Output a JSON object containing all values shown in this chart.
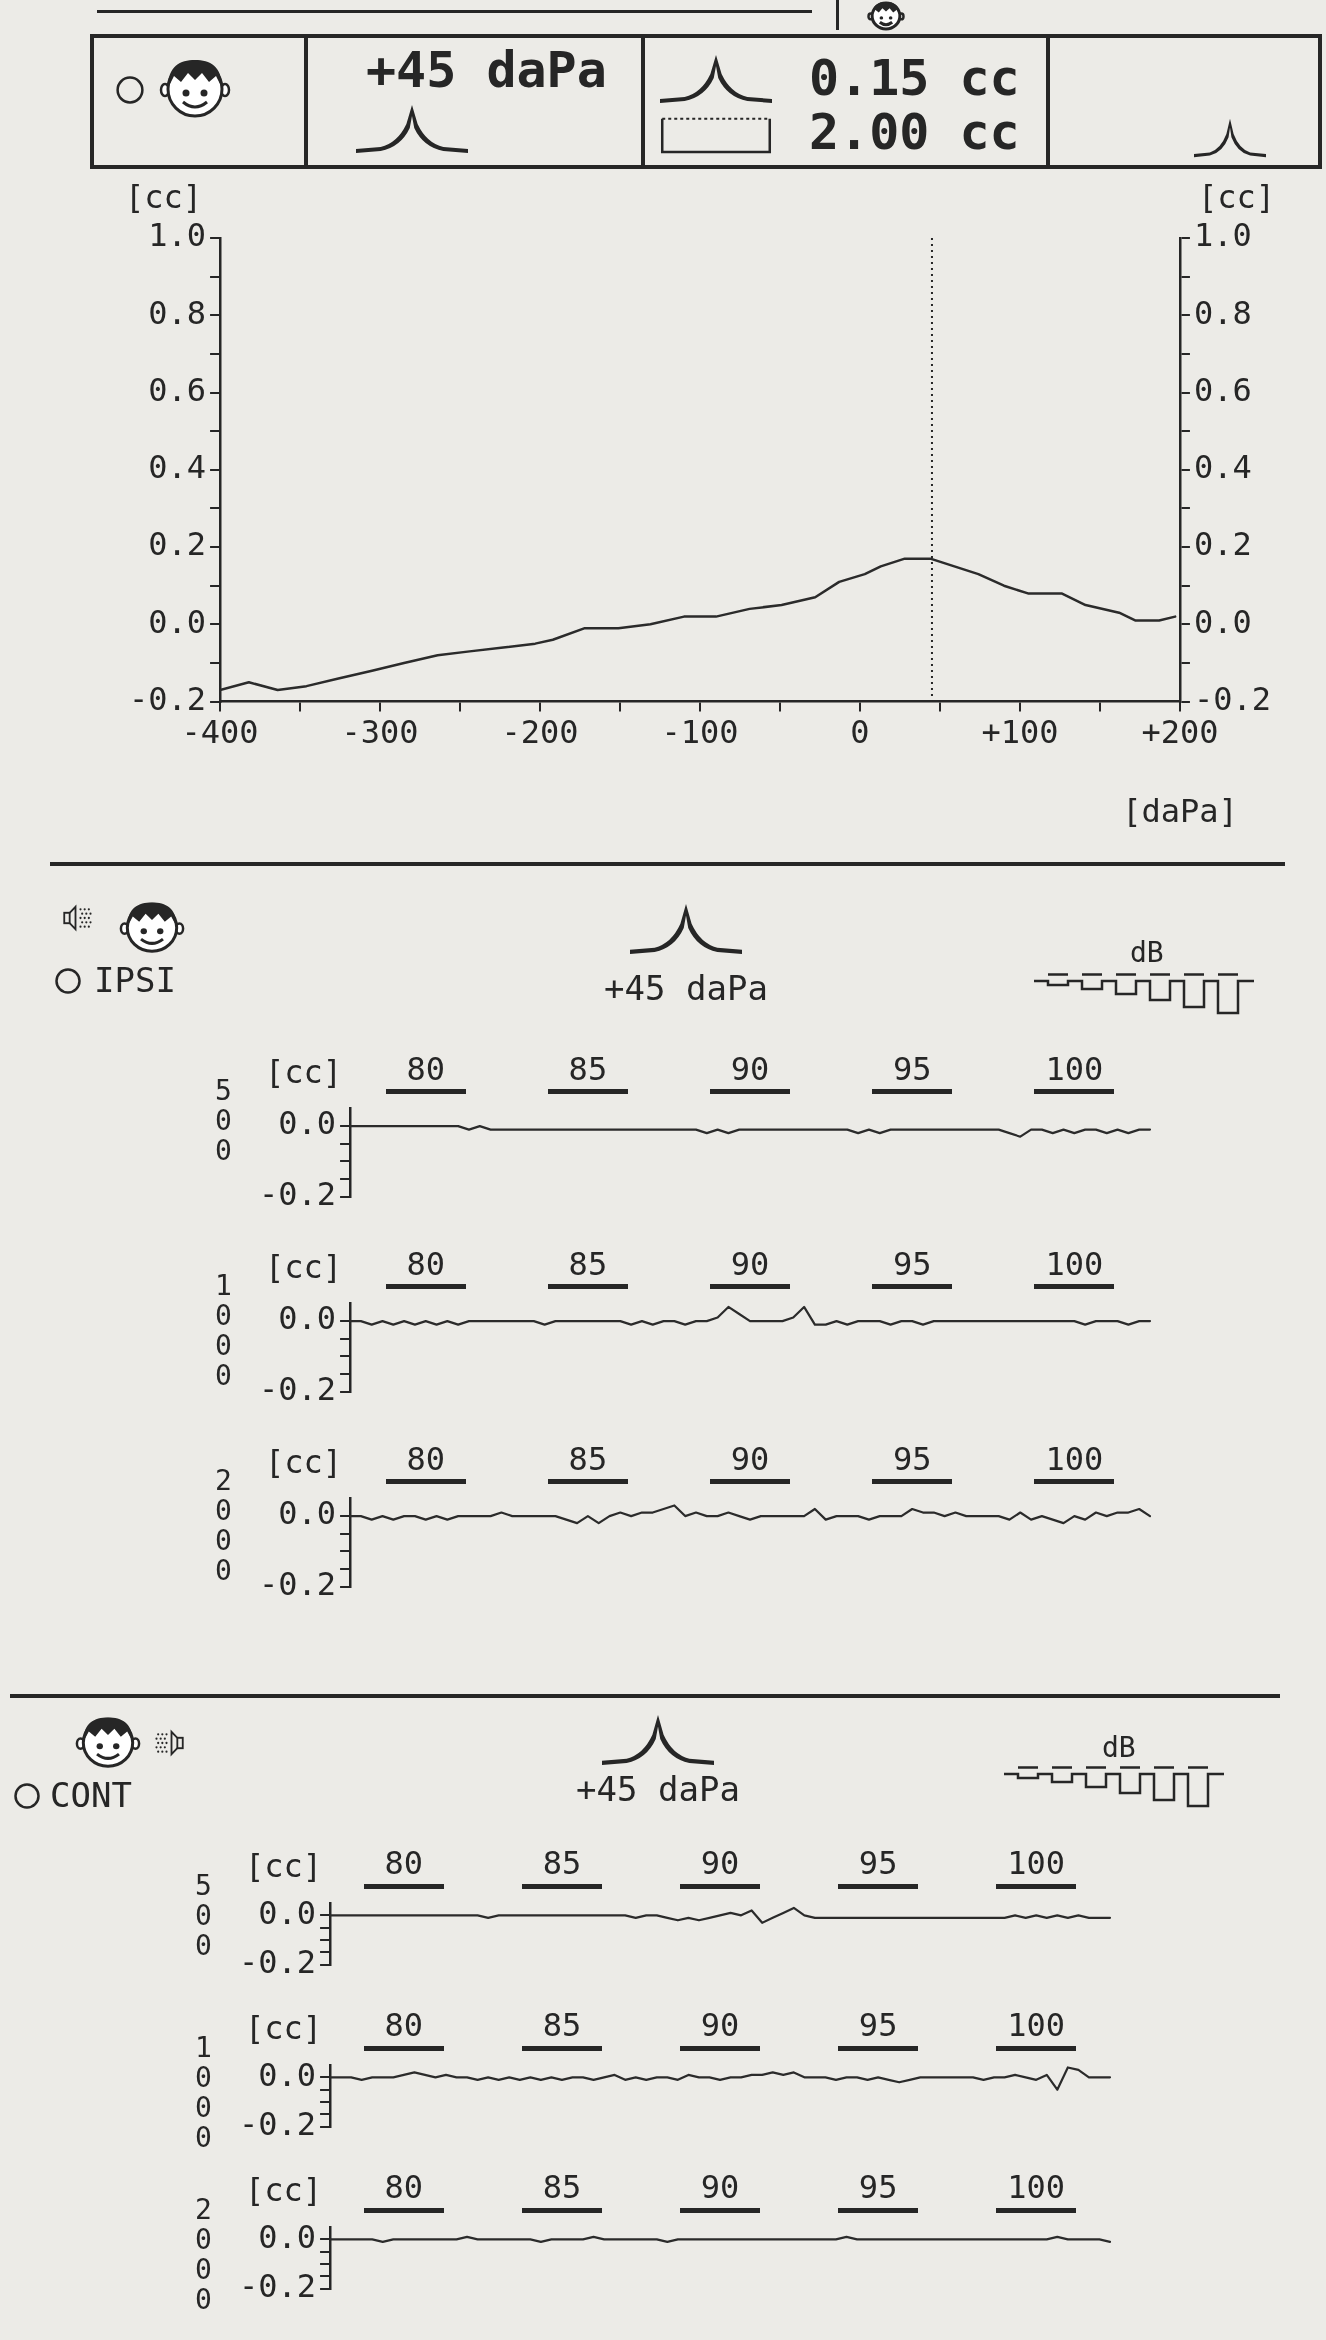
{
  "chart_data": [
    {
      "type": "other",
      "annotations": [
        "+45 daPa",
        "0.15 cc",
        "2.00 cc"
      ]
    },
    {
      "type": "line",
      "xlabel": "[daPa]",
      "ylabel": "[cc]",
      "y2label": "[cc]",
      "x": [
        -400,
        -382,
        -364,
        -346,
        -326,
        -305,
        -285,
        -264,
        -244,
        -223,
        -203,
        -192,
        -172,
        -151,
        -131,
        -110,
        -90,
        -69,
        -49,
        -28,
        -13,
        3,
        13,
        28,
        44,
        59,
        74,
        90,
        105,
        126,
        141,
        162,
        172,
        187,
        197
      ],
      "values": [
        -0.17,
        -0.15,
        -0.17,
        -0.16,
        -0.14,
        -0.12,
        -0.1,
        -0.08,
        -0.07,
        -0.06,
        -0.05,
        -0.04,
        -0.01,
        -0.01,
        0,
        0.02,
        0.02,
        0.04,
        0.05,
        0.07,
        0.11,
        0.13,
        0.15,
        0.17,
        0.17,
        0.15,
        0.13,
        0.1,
        0.08,
        0.08,
        0.05,
        0.03,
        0.01,
        0.01,
        0.02
      ],
      "color": "#2b2b2b",
      "xlim": [
        -400,
        200
      ],
      "xticks": [
        -400,
        {
          "value": -350,
          "label": null
        },
        -300,
        {
          "value": -250,
          "label": null
        },
        -200,
        {
          "value": -150,
          "label": null
        },
        -100,
        {
          "value": -50,
          "label": null
        },
        0,
        {
          "value": 50,
          "label": null
        },
        {
          "value": 100,
          "label": "+100"
        },
        {
          "value": 150,
          "label": null
        },
        {
          "value": 200,
          "label": "+200"
        }
      ],
      "ylim": [
        -0.2,
        1
      ],
      "yticks": [
        -0.2,
        {
          "value": -0.1,
          "label": null
        },
        {
          "value": 0,
          "label": "0.0"
        },
        {
          "value": 0.1,
          "label": null
        },
        0.2,
        {
          "value": 0.3,
          "label": null
        },
        0.4,
        {
          "value": 0.5,
          "label": null
        },
        0.6,
        {
          "value": 0.7,
          "label": null
        },
        0.8,
        {
          "value": 0.9,
          "label": null
        },
        {
          "value": 1,
          "label": "1.0"
        }
      ],
      "y2lim": [
        -0.2,
        1
      ],
      "y2ticks": [
        -0.2,
        {
          "value": -0.1,
          "label": null
        },
        {
          "value": 0,
          "label": "0.0"
        },
        {
          "value": 0.1,
          "label": null
        },
        0.2,
        {
          "value": 0.3,
          "label": null
        },
        0.4,
        {
          "value": 0.5,
          "label": null
        },
        0.6,
        {
          "value": 0.7,
          "label": null
        },
        0.8,
        {
          "value": 0.9,
          "label": null
        },
        {
          "value": 1,
          "label": "1.0"
        }
      ],
      "ref_lines": [
        {
          "axis": "x",
          "value": 45,
          "line_style": "dotted"
        }
      ]
    },
    {
      "type": "other",
      "annotations": [
        "IPSI",
        "+45 daPa",
        "dB"
      ]
    },
    {
      "type": "line",
      "title": "500",
      "ylabel": "[cc]",
      "categories": [
        null,
        null,
        null,
        null,
        null,
        null,
        null,
        "80",
        null,
        null,
        null,
        null,
        null,
        null,
        null,
        null,
        null,
        null,
        null,
        null,
        null,
        null,
        "85",
        null,
        null,
        null,
        null,
        null,
        null,
        null,
        null,
        null,
        null,
        null,
        null,
        null,
        null,
        "90",
        null,
        null,
        null,
        null,
        null,
        null,
        null,
        null,
        null,
        null,
        null,
        null,
        null,
        null,
        "95",
        null,
        null,
        null,
        null,
        null,
        null,
        null,
        null,
        null,
        null,
        null,
        null,
        null,
        null,
        "100",
        null,
        null,
        null,
        null,
        null,
        null,
        null
      ],
      "values": [
        0,
        0,
        0,
        0,
        0,
        0,
        0,
        0,
        0,
        0,
        0,
        -0.01,
        0,
        -0.01,
        -0.01,
        -0.01,
        -0.01,
        -0.01,
        -0.01,
        -0.01,
        -0.01,
        -0.01,
        -0.01,
        -0.01,
        -0.01,
        -0.01,
        -0.01,
        -0.01,
        -0.01,
        -0.01,
        -0.01,
        -0.01,
        -0.01,
        -0.02,
        -0.01,
        -0.02,
        -0.01,
        -0.01,
        -0.01,
        -0.01,
        -0.01,
        -0.01,
        -0.01,
        -0.01,
        -0.01,
        -0.01,
        -0.01,
        -0.02,
        -0.01,
        -0.02,
        -0.01,
        -0.01,
        -0.01,
        -0.01,
        -0.01,
        -0.01,
        -0.01,
        -0.01,
        -0.01,
        -0.01,
        -0.01,
        -0.02,
        -0.03,
        -0.01,
        -0.01,
        -0.02,
        -0.01,
        -0.02,
        -0.01,
        -0.01,
        -0.02,
        -0.01,
        -0.02,
        -0.01,
        -0.01
      ],
      "color": "#2b2b2b",
      "ylim": [
        -0.2,
        0.05
      ],
      "yticks": [
        -0.2,
        {
          "value": -0.15,
          "label": null
        },
        {
          "value": -0.1,
          "label": null
        },
        {
          "value": -0.05,
          "label": null
        },
        {
          "value": 0,
          "label": "0.0"
        }
      ]
    },
    {
      "type": "line",
      "title": "1000",
      "ylabel": "[cc]",
      "categories": [
        null,
        null,
        null,
        null,
        null,
        null,
        null,
        "80",
        null,
        null,
        null,
        null,
        null,
        null,
        null,
        null,
        null,
        null,
        null,
        null,
        null,
        null,
        "85",
        null,
        null,
        null,
        null,
        null,
        null,
        null,
        null,
        null,
        null,
        null,
        null,
        null,
        null,
        "90",
        null,
        null,
        null,
        null,
        null,
        null,
        null,
        null,
        null,
        null,
        null,
        null,
        null,
        null,
        "95",
        null,
        null,
        null,
        null,
        null,
        null,
        null,
        null,
        null,
        null,
        null,
        null,
        null,
        null,
        "100",
        null,
        null,
        null,
        null,
        null,
        null,
        null
      ],
      "values": [
        0,
        0,
        -0.01,
        0,
        -0.01,
        0,
        -0.01,
        0,
        -0.01,
        0,
        -0.01,
        0,
        0,
        0,
        0,
        0,
        0,
        0,
        -0.01,
        0,
        0,
        0,
        0,
        0,
        0,
        0,
        -0.01,
        0,
        -0.01,
        0,
        0,
        -0.01,
        0,
        0,
        0.01,
        0.04,
        0.02,
        0,
        0,
        0,
        0,
        0.01,
        0.04,
        -0.01,
        -0.01,
        0,
        -0.01,
        0,
        0,
        0,
        -0.01,
        0,
        0,
        -0.01,
        0,
        0,
        0,
        0,
        0,
        0,
        0,
        0,
        0,
        0,
        0,
        0,
        0,
        0,
        -0.01,
        0,
        0,
        0,
        -0.01,
        0,
        0
      ],
      "color": "#2b2b2b",
      "ylim": [
        -0.2,
        0.05
      ],
      "yticks": [
        -0.2,
        {
          "value": -0.15,
          "label": null
        },
        {
          "value": -0.1,
          "label": null
        },
        {
          "value": -0.05,
          "label": null
        },
        {
          "value": 0,
          "label": "0.0"
        }
      ]
    },
    {
      "type": "line",
      "title": "2000",
      "ylabel": "[cc]",
      "categories": [
        null,
        null,
        null,
        null,
        null,
        null,
        null,
        "80",
        null,
        null,
        null,
        null,
        null,
        null,
        null,
        null,
        null,
        null,
        null,
        null,
        null,
        null,
        "85",
        null,
        null,
        null,
        null,
        null,
        null,
        null,
        null,
        null,
        null,
        null,
        null,
        null,
        null,
        "90",
        null,
        null,
        null,
        null,
        null,
        null,
        null,
        null,
        null,
        null,
        null,
        null,
        null,
        null,
        "95",
        null,
        null,
        null,
        null,
        null,
        null,
        null,
        null,
        null,
        null,
        null,
        null,
        null,
        null,
        "100",
        null,
        null,
        null,
        null,
        null,
        null,
        null
      ],
      "values": [
        0,
        0,
        -0.01,
        0,
        -0.01,
        0,
        0,
        -0.01,
        0,
        -0.01,
        0,
        0,
        0,
        0,
        0.01,
        0,
        0,
        0,
        0,
        0,
        -0.01,
        -0.02,
        0,
        -0.02,
        0,
        0.01,
        0,
        0.01,
        0.01,
        0.02,
        0.03,
        0,
        0.01,
        0,
        0,
        0.01,
        0,
        -0.01,
        0,
        0,
        0,
        0,
        0,
        0.02,
        -0.01,
        0,
        0,
        0,
        -0.01,
        0,
        0,
        0,
        0.02,
        0.01,
        0.01,
        0,
        0.01,
        0,
        0,
        0,
        0,
        -0.01,
        0.01,
        -0.01,
        0,
        -0.01,
        -0.02,
        0,
        -0.01,
        0.01,
        0,
        0.01,
        0.01,
        0.02,
        0
      ],
      "color": "#2b2b2b",
      "ylim": [
        -0.2,
        0.05
      ],
      "yticks": [
        -0.2,
        {
          "value": -0.15,
          "label": null
        },
        {
          "value": -0.1,
          "label": null
        },
        {
          "value": -0.05,
          "label": null
        },
        {
          "value": 0,
          "label": "0.0"
        }
      ]
    },
    {
      "type": "other",
      "annotations": [
        "CONT",
        "+45 daPa",
        "dB"
      ]
    },
    {
      "type": "line",
      "title": "500",
      "ylabel": "[cc]",
      "categories": [
        null,
        null,
        null,
        null,
        null,
        null,
        null,
        "80",
        null,
        null,
        null,
        null,
        null,
        null,
        null,
        null,
        null,
        null,
        null,
        null,
        null,
        null,
        "85",
        null,
        null,
        null,
        null,
        null,
        null,
        null,
        null,
        null,
        null,
        null,
        null,
        null,
        null,
        "90",
        null,
        null,
        null,
        null,
        null,
        null,
        null,
        null,
        null,
        null,
        null,
        null,
        null,
        null,
        "95",
        null,
        null,
        null,
        null,
        null,
        null,
        null,
        null,
        null,
        null,
        null,
        null,
        null,
        null,
        "100",
        null,
        null,
        null,
        null,
        null,
        null,
        null
      ],
      "values": [
        0,
        0,
        0,
        0,
        0,
        0,
        0,
        0,
        0,
        0,
        0,
        0,
        0,
        0,
        0,
        -0.01,
        0,
        0,
        0,
        0,
        0,
        0,
        0,
        0,
        0,
        0,
        0,
        0,
        0,
        -0.01,
        0,
        0,
        -0.01,
        -0.02,
        -0.01,
        -0.02,
        -0.01,
        0,
        0.01,
        0,
        0.02,
        -0.03,
        -0.01,
        0.01,
        0.03,
        0,
        -0.01,
        -0.01,
        -0.01,
        -0.01,
        -0.01,
        -0.01,
        -0.01,
        -0.01,
        -0.01,
        -0.01,
        -0.01,
        -0.01,
        -0.01,
        -0.01,
        -0.01,
        -0.01,
        -0.01,
        -0.01,
        -0.01,
        0,
        -0.01,
        0,
        -0.01,
        0,
        -0.01,
        0,
        -0.01,
        -0.01,
        -0.01
      ],
      "color": "#2b2b2b",
      "ylim": [
        -0.2,
        0.05
      ],
      "yticks": [
        -0.2,
        {
          "value": -0.15,
          "label": null
        },
        {
          "value": -0.1,
          "label": null
        },
        {
          "value": -0.05,
          "label": null
        },
        {
          "value": 0,
          "label": "0.0"
        }
      ]
    },
    {
      "type": "line",
      "title": "1000",
      "ylabel": "[cc]",
      "categories": [
        null,
        null,
        null,
        null,
        null,
        null,
        null,
        "80",
        null,
        null,
        null,
        null,
        null,
        null,
        null,
        null,
        null,
        null,
        null,
        null,
        null,
        null,
        "85",
        null,
        null,
        null,
        null,
        null,
        null,
        null,
        null,
        null,
        null,
        null,
        null,
        null,
        null,
        "90",
        null,
        null,
        null,
        null,
        null,
        null,
        null,
        null,
        null,
        null,
        null,
        null,
        null,
        null,
        "95",
        null,
        null,
        null,
        null,
        null,
        null,
        null,
        null,
        null,
        null,
        null,
        null,
        null,
        null,
        "100",
        null,
        null,
        null,
        null,
        null,
        null,
        null
      ],
      "values": [
        0,
        0,
        0,
        -0.01,
        0,
        0,
        0,
        0.01,
        0.02,
        0.01,
        0,
        0.01,
        0,
        0,
        -0.01,
        0,
        -0.01,
        0,
        -0.01,
        0,
        -0.01,
        0,
        -0.01,
        0,
        0,
        -0.01,
        0,
        0.01,
        -0.01,
        0,
        -0.01,
        0,
        0,
        -0.01,
        0.01,
        0,
        0,
        -0.01,
        0,
        0,
        0.01,
        0.01,
        0.02,
        0.01,
        0.02,
        0,
        0,
        0,
        -0.01,
        0,
        0,
        -0.01,
        0,
        -0.01,
        -0.02,
        -0.01,
        0,
        0,
        0,
        0,
        0,
        0,
        -0.01,
        0,
        0,
        0.01,
        0,
        -0.01,
        0.01,
        -0.05,
        0.04,
        0.03,
        0,
        0,
        0
      ],
      "color": "#2b2b2b",
      "ylim": [
        -0.2,
        0.05
      ],
      "yticks": [
        -0.2,
        {
          "value": -0.15,
          "label": null
        },
        {
          "value": -0.1,
          "label": null
        },
        {
          "value": -0.05,
          "label": null
        },
        {
          "value": 0,
          "label": "0.0"
        }
      ]
    },
    {
      "type": "line",
      "title": "2000",
      "ylabel": "[cc]",
      "categories": [
        null,
        null,
        null,
        null,
        null,
        null,
        null,
        "80",
        null,
        null,
        null,
        null,
        null,
        null,
        null,
        null,
        null,
        null,
        null,
        null,
        null,
        null,
        "85",
        null,
        null,
        null,
        null,
        null,
        null,
        null,
        null,
        null,
        null,
        null,
        null,
        null,
        null,
        "90",
        null,
        null,
        null,
        null,
        null,
        null,
        null,
        null,
        null,
        null,
        null,
        null,
        null,
        null,
        "95",
        null,
        null,
        null,
        null,
        null,
        null,
        null,
        null,
        null,
        null,
        null,
        null,
        null,
        null,
        "100",
        null,
        null,
        null,
        null,
        null,
        null,
        null
      ],
      "values": [
        0,
        0,
        0,
        0,
        0,
        -0.01,
        0,
        0,
        0,
        0,
        0,
        0,
        0,
        0.01,
        0,
        0,
        0,
        0,
        0,
        0,
        -0.01,
        0,
        0,
        0,
        0,
        0.01,
        0,
        0,
        0,
        0,
        0,
        0,
        -0.01,
        0,
        0,
        0,
        0,
        0,
        0,
        0,
        0,
        0,
        0,
        0,
        0,
        0,
        0,
        0,
        0,
        0.01,
        0,
        0,
        0,
        0,
        0,
        0,
        0,
        0,
        0,
        0,
        0,
        0,
        0,
        0,
        0,
        0,
        0,
        0,
        0,
        0.01,
        0,
        0,
        0,
        0,
        -0.01
      ],
      "color": "#2b2b2b",
      "ylim": [
        -0.2,
        0.05
      ],
      "yticks": [
        -0.2,
        {
          "value": -0.15,
          "label": null
        },
        {
          "value": -0.1,
          "label": null
        },
        {
          "value": -0.05,
          "label": null
        },
        {
          "value": 0,
          "label": "0.0"
        }
      ]
    }
  ]
}
